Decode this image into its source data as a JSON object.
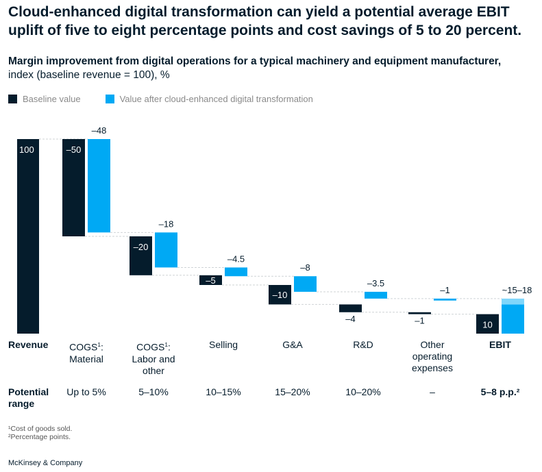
{
  "headline": "Cloud-enhanced digital transformation can yield a potential average EBIT uplift of five to eight percentage points and cost savings of 5 to 20 percent.",
  "subtitle": "Margin improvement from digital operations for a typical machinery and equipment manufacturer,",
  "unit_note": "index (baseline revenue = 100), %",
  "colors": {
    "baseline": "#051c2c",
    "after": "#00a9f4",
    "after_light": "#7fd6fb"
  },
  "chart_data": {
    "type": "bar",
    "subtype": "waterfall",
    "legend": [
      "Baseline value",
      "Value after cloud-enhanced digital transformation"
    ],
    "legend_position": "top-left",
    "ylim": [
      0,
      100
    ],
    "categories": [
      {
        "label": "Revenue",
        "sup": "",
        "bold": true,
        "baseline": 100,
        "baseline_label": "100",
        "after": null,
        "after_label": ""
      },
      {
        "label": "COGS",
        "sup": "1",
        "label_rest": ": Material",
        "bold": false,
        "baseline": -50,
        "baseline_label": "–50",
        "after": -48,
        "after_label": "–48"
      },
      {
        "label": "COGS",
        "sup": "1",
        "label_rest": ": Labor and other",
        "bold": false,
        "baseline": -20,
        "baseline_label": "–20",
        "after": -18,
        "after_label": "–18"
      },
      {
        "label": "Selling",
        "sup": "",
        "bold": false,
        "baseline": -5,
        "baseline_label": "–5",
        "after": -4.5,
        "after_label": "–4.5"
      },
      {
        "label": "G&A",
        "sup": "",
        "bold": false,
        "baseline": -10,
        "baseline_label": "–10",
        "after": -8,
        "after_label": "–8"
      },
      {
        "label": "R&D",
        "sup": "",
        "bold": false,
        "baseline": -4,
        "baseline_label": "–4",
        "after": -3.5,
        "after_label": "–3.5"
      },
      {
        "label": "Other operating expenses",
        "sup": "",
        "bold": false,
        "baseline": -1,
        "baseline_label": "–1",
        "after": -1,
        "after_label": "–1"
      },
      {
        "label": "EBIT",
        "sup": "",
        "bold": true,
        "baseline": 10,
        "baseline_label": "10",
        "after": [
          15,
          18
        ],
        "after_label": "~15–18"
      }
    ],
    "potential_range_label": "Potential range",
    "potential_range": [
      "",
      "Up to 5%",
      "5–10%",
      "10–15%",
      "15–20%",
      "10–20%",
      "–",
      "5–8 p.p.²"
    ]
  },
  "footnotes": [
    "¹Cost of goods sold.",
    "²Percentage points."
  ],
  "source": "McKinsey & Company"
}
